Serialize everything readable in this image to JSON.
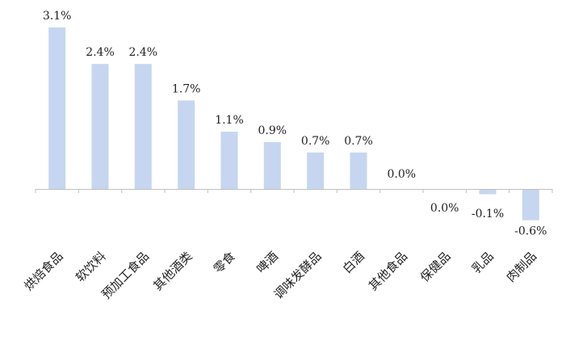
{
  "chart_data": {
    "type": "bar",
    "categories": [
      "烘焙食品",
      "软饮料",
      "预加工食品",
      "其他酒类",
      "零食",
      "啤酒",
      "调味发酵品",
      "白酒",
      "其他食品",
      "保健品",
      "乳品",
      "肉制品"
    ],
    "values": [
      3.1,
      2.4,
      2.4,
      1.7,
      1.1,
      0.9,
      0.7,
      0.7,
      0.0,
      0.0,
      -0.1,
      -0.6
    ],
    "data_labels": [
      "3.1%",
      "2.4%",
      "2.4%",
      "1.7%",
      "1.1%",
      "0.9%",
      "0.7%",
      "0.7%",
      "0.0%",
      "0.0%",
      "-0.1%",
      "-0.6%"
    ],
    "title": "",
    "xlabel": "",
    "ylabel": "",
    "ylim": [
      -0.6,
      3.1
    ],
    "grid": false,
    "legend": "none",
    "bar_color": "#c6d6f0"
  }
}
